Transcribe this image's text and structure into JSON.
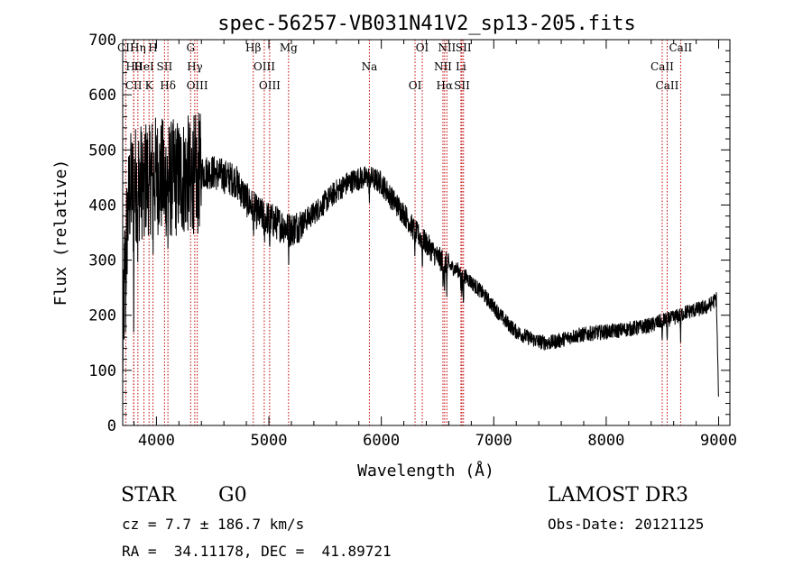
{
  "chart_data": {
    "type": "line",
    "title": "spec-56257-VB031N41V2_sp13-205.fits",
    "xlabel": "Wavelength (Å)",
    "ylabel": "Flux (relative)",
    "xlim": [
      3700,
      9100
    ],
    "ylim": [
      0,
      700
    ],
    "xticks": [
      4000,
      5000,
      6000,
      7000,
      8000,
      9000
    ],
    "yticks": [
      0,
      100,
      200,
      300,
      400,
      500,
      600,
      700
    ],
    "xtick_labels": [
      "4000",
      "5000",
      "6000",
      "7000",
      "8000",
      "9000"
    ],
    "ytick_labels": [
      "0",
      "100",
      "200",
      "300",
      "400",
      "500",
      "600",
      "700"
    ],
    "continuum": {
      "x": [
        3700,
        3720,
        3760,
        3800,
        3850,
        3900,
        3950,
        4000,
        4050,
        4100,
        4200,
        4300,
        4400,
        4500,
        4600,
        4700,
        4800,
        4900,
        5000,
        5100,
        5200,
        5300,
        5400,
        5500,
        5600,
        5700,
        5800,
        5900,
        6000,
        6100,
        6200,
        6300,
        6400,
        6500,
        6600,
        6700,
        6800,
        6900,
        7000,
        7100,
        7200,
        7300,
        7400,
        7500,
        7600,
        7700,
        7800,
        7900,
        8000,
        8100,
        8200,
        8300,
        8400,
        8500,
        8600,
        8700,
        8800,
        8900,
        8980,
        9000
      ],
      "y": [
        120,
        300,
        420,
        440,
        440,
        450,
        455,
        455,
        450,
        445,
        450,
        455,
        460,
        460,
        452,
        445,
        410,
        385,
        375,
        365,
        355,
        368,
        385,
        405,
        425,
        440,
        448,
        450,
        440,
        410,
        385,
        352,
        330,
        305,
        290,
        280,
        260,
        240,
        215,
        190,
        170,
        160,
        152,
        150,
        155,
        162,
        165,
        168,
        170,
        172,
        175,
        178,
        182,
        190,
        195,
        205,
        210,
        215,
        230,
        40
      ]
    },
    "lines": [
      {
        "name": "CII",
        "wavelength": 3727
      },
      {
        "name": "Hθ",
        "wavelength": 3798
      },
      {
        "name": "CII",
        "wavelength": 3798
      },
      {
        "name": "Hη",
        "wavelength": 3835
      },
      {
        "name": "HeI",
        "wavelength": 3889
      },
      {
        "name": "K",
        "wavelength": 3934
      },
      {
        "name": "H",
        "wavelength": 3969
      },
      {
        "name": "SII",
        "wavelength": 4072
      },
      {
        "name": "Hδ",
        "wavelength": 4102
      },
      {
        "name": "G",
        "wavelength": 4304
      },
      {
        "name": "Hγ",
        "wavelength": 4341
      },
      {
        "name": "OIII",
        "wavelength": 4363
      },
      {
        "name": "Hβ",
        "wavelength": 4861
      },
      {
        "name": "OIII",
        "wavelength": 4959
      },
      {
        "name": "OIII",
        "wavelength": 5007
      },
      {
        "name": "Mg",
        "wavelength": 5175
      },
      {
        "name": "Na",
        "wavelength": 5894
      },
      {
        "name": "OI",
        "wavelength": 6300
      },
      {
        "name": "OI",
        "wavelength": 6364
      },
      {
        "name": "NII",
        "wavelength": 6548
      },
      {
        "name": "Hα",
        "wavelength": 6563
      },
      {
        "name": "NII",
        "wavelength": 6583
      },
      {
        "name": "Li",
        "wavelength": 6708
      },
      {
        "name": "SII",
        "wavelength": 6717
      },
      {
        "name": "SII",
        "wavelength": 6731
      },
      {
        "name": "CaII",
        "wavelength": 8498
      },
      {
        "name": "CaII",
        "wavelength": 8542
      },
      {
        "name": "CaII",
        "wavelength": 8662
      }
    ]
  },
  "info": {
    "class": "STAR",
    "subclass": "G0",
    "survey": "LAMOST DR3",
    "cz": "cz = 7.7 ± 186.7 km/s",
    "obs_date": "Obs-Date: 20121125",
    "coords": "RA =  34.11178, DEC =  41.89721"
  },
  "colors": {
    "axis": "#000000",
    "spectrum": "#000000",
    "line_marker": "#c00000"
  }
}
